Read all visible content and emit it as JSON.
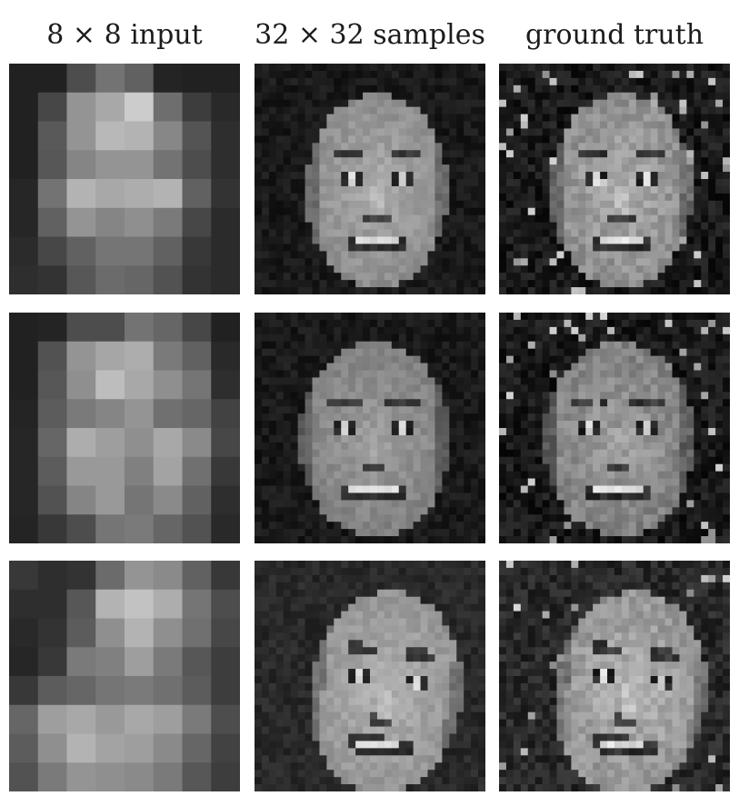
{
  "figure": {
    "columns": [
      {
        "id": "input",
        "label": "8 × 8 input"
      },
      {
        "id": "samples",
        "label": "32 × 32 samples"
      },
      {
        "id": "ground_truth",
        "label": "ground truth"
      }
    ],
    "rows": [
      {
        "input_grid": [
          [
            0.13,
            0.13,
            0.3,
            0.45,
            0.38,
            0.14,
            0.13,
            0.13
          ],
          [
            0.13,
            0.28,
            0.58,
            0.66,
            0.8,
            0.43,
            0.24,
            0.16
          ],
          [
            0.13,
            0.35,
            0.58,
            0.72,
            0.7,
            0.53,
            0.33,
            0.18
          ],
          [
            0.13,
            0.34,
            0.52,
            0.58,
            0.58,
            0.45,
            0.3,
            0.18
          ],
          [
            0.15,
            0.45,
            0.7,
            0.66,
            0.68,
            0.7,
            0.38,
            0.2
          ],
          [
            0.15,
            0.38,
            0.58,
            0.52,
            0.56,
            0.48,
            0.28,
            0.17
          ],
          [
            0.17,
            0.28,
            0.38,
            0.46,
            0.46,
            0.38,
            0.22,
            0.17
          ],
          [
            0.18,
            0.2,
            0.34,
            0.42,
            0.4,
            0.32,
            0.2,
            0.17
          ]
        ]
      },
      {
        "input_grid": [
          [
            0.13,
            0.14,
            0.3,
            0.3,
            0.45,
            0.4,
            0.28,
            0.13
          ],
          [
            0.13,
            0.32,
            0.58,
            0.65,
            0.68,
            0.48,
            0.38,
            0.16
          ],
          [
            0.13,
            0.34,
            0.56,
            0.74,
            0.66,
            0.56,
            0.46,
            0.18
          ],
          [
            0.14,
            0.36,
            0.48,
            0.52,
            0.58,
            0.44,
            0.4,
            0.26
          ],
          [
            0.15,
            0.4,
            0.68,
            0.62,
            0.56,
            0.66,
            0.54,
            0.28
          ],
          [
            0.15,
            0.36,
            0.6,
            0.6,
            0.5,
            0.64,
            0.44,
            0.22
          ],
          [
            0.15,
            0.32,
            0.52,
            0.6,
            0.46,
            0.54,
            0.38,
            0.18
          ],
          [
            0.14,
            0.22,
            0.3,
            0.46,
            0.48,
            0.4,
            0.32,
            0.16
          ]
        ]
      },
      {
        "input_grid": [
          [
            0.22,
            0.18,
            0.2,
            0.42,
            0.58,
            0.54,
            0.38,
            0.22
          ],
          [
            0.18,
            0.18,
            0.34,
            0.7,
            0.76,
            0.68,
            0.46,
            0.3
          ],
          [
            0.16,
            0.2,
            0.36,
            0.56,
            0.7,
            0.56,
            0.44,
            0.28
          ],
          [
            0.15,
            0.22,
            0.48,
            0.5,
            0.62,
            0.48,
            0.34,
            0.24
          ],
          [
            0.22,
            0.36,
            0.4,
            0.46,
            0.48,
            0.44,
            0.36,
            0.24
          ],
          [
            0.4,
            0.62,
            0.66,
            0.6,
            0.66,
            0.62,
            0.48,
            0.3
          ],
          [
            0.36,
            0.56,
            0.7,
            0.64,
            0.62,
            0.54,
            0.4,
            0.26
          ],
          [
            0.32,
            0.48,
            0.58,
            0.56,
            0.54,
            0.48,
            0.34,
            0.24
          ]
        ]
      }
    ]
  }
}
